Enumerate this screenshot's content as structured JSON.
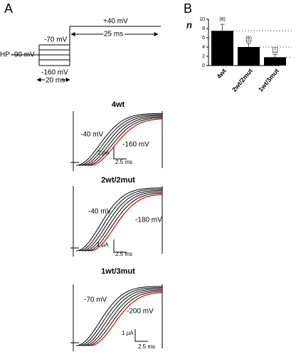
{
  "panel_labels": [
    "A",
    "B"
  ],
  "protocol": {
    "top_voltage": "+40 mV",
    "step_duration": "25 ms",
    "step_top": "-70 mV",
    "holding": "HP -90 mV",
    "step_bottom": "-160 mV",
    "prepulse_duration": "20 ms"
  },
  "traces": [
    {
      "title": "4wt",
      "v_first": "-40 mV",
      "v_last": "-160 mV",
      "current_scale": "2 µA",
      "time_scale": "2.5 ms"
    },
    {
      "title": "2wt/2mut",
      "v_first": "-40 mV",
      "v_last": "-180 mV",
      "current_scale": "1 µA",
      "time_scale": "2.5 ms"
    },
    {
      "title": "1wt/3mut",
      "v_first": "-70 mV",
      "v_last": "-200 mV",
      "current_scale": "1 µA",
      "time_scale": "2.5 ms"
    }
  ],
  "chart_data": {
    "type": "bar",
    "y_label": "n",
    "categories": [
      "4wt",
      "2wt/2mut",
      "1wt/3mut"
    ],
    "values": [
      7.5,
      4.0,
      1.8
    ],
    "errors": [
      1.4,
      0.8,
      0.6
    ],
    "n_labels": [
      "(8)",
      "(6)",
      "(7)"
    ],
    "significance": [
      null,
      "***",
      "***"
    ],
    "color": "#000000",
    "ylim": [
      0,
      10
    ],
    "yticks": [
      0,
      2,
      4,
      6,
      8,
      10
    ]
  }
}
